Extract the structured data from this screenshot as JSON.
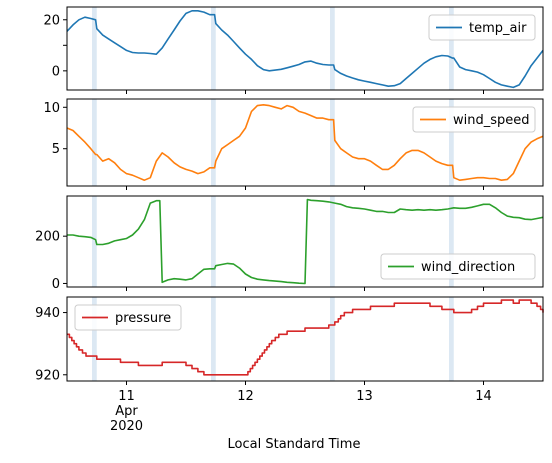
{
  "chart_data": {
    "type": "line",
    "xlabel": "Local Standard Time",
    "x_ticks": [
      {
        "x": 11,
        "label": "11",
        "sub1": "Apr",
        "sub2": "2020"
      },
      {
        "x": 12,
        "label": "12"
      },
      {
        "x": 13,
        "label": "13"
      },
      {
        "x": 14,
        "label": "14"
      }
    ],
    "xlim": [
      10.5,
      14.5
    ],
    "shaded_periods": [
      [
        10.71,
        10.75
      ],
      [
        11.71,
        11.75
      ],
      [
        12.71,
        12.75
      ],
      [
        13.71,
        13.75
      ]
    ],
    "shade_color": "#dce8f3",
    "panels": [
      {
        "name": "temp_air",
        "color": "#1f77b4",
        "ylim": [
          -7.5,
          25
        ],
        "yticks": [
          0,
          10,
          20
        ],
        "ytick_labels": [
          "0",
          "",
          "20"
        ],
        "legend": "top-right",
        "x": [
          10.5,
          10.55,
          10.6,
          10.65,
          10.7,
          10.74,
          10.75,
          10.8,
          10.85,
          10.9,
          10.95,
          11.0,
          11.05,
          11.1,
          11.15,
          11.2,
          11.25,
          11.3,
          11.35,
          11.4,
          11.45,
          11.5,
          11.55,
          11.6,
          11.65,
          11.7,
          11.74,
          11.75,
          11.8,
          11.85,
          11.9,
          11.95,
          12.0,
          12.05,
          12.1,
          12.15,
          12.2,
          12.25,
          12.3,
          12.35,
          12.4,
          12.45,
          12.5,
          12.55,
          12.6,
          12.65,
          12.7,
          12.74,
          12.75,
          12.8,
          12.85,
          12.9,
          12.95,
          13.0,
          13.05,
          13.1,
          13.15,
          13.2,
          13.25,
          13.3,
          13.35,
          13.4,
          13.45,
          13.5,
          13.55,
          13.6,
          13.65,
          13.7,
          13.74,
          13.75,
          13.8,
          13.85,
          13.9,
          13.95,
          14.0,
          14.05,
          14.1,
          14.15,
          14.2,
          14.25,
          14.3,
          14.35,
          14.4,
          14.45,
          14.5
        ],
        "values": [
          15.5,
          18.0,
          20.0,
          21.0,
          20.5,
          20.0,
          16.5,
          14.0,
          12.5,
          11.0,
          9.5,
          8.0,
          7.2,
          7.0,
          7.0,
          6.8,
          6.5,
          9.0,
          12.5,
          16.0,
          19.5,
          22.5,
          23.5,
          23.5,
          23.0,
          22.0,
          22.0,
          18.5,
          16.0,
          14.0,
          11.5,
          9.0,
          6.5,
          4.5,
          2.0,
          0.5,
          0.0,
          0.3,
          0.6,
          1.2,
          1.8,
          2.5,
          3.5,
          3.8,
          3.0,
          2.5,
          2.3,
          2.3,
          0.5,
          -1.0,
          -2.0,
          -2.8,
          -3.5,
          -4.0,
          -4.5,
          -5.0,
          -5.5,
          -6.0,
          -5.8,
          -5.0,
          -3.0,
          -1.0,
          1.0,
          3.0,
          4.5,
          5.5,
          6.0,
          5.8,
          5.0,
          5.0,
          1.5,
          0.5,
          0.0,
          -0.5,
          -1.5,
          -3.0,
          -4.5,
          -5.5,
          -6.0,
          -6.5,
          -5.5,
          -2.0,
          2.0,
          5.0,
          8.0
        ]
      },
      {
        "name": "wind_speed",
        "color": "#ff7f0e",
        "ylim": [
          0.5,
          11
        ],
        "yticks": [
          5,
          10
        ],
        "ytick_labels": [
          "5",
          "10"
        ],
        "legend": "top-right",
        "x": [
          10.5,
          10.55,
          10.6,
          10.65,
          10.7,
          10.74,
          10.75,
          10.8,
          10.85,
          10.9,
          10.95,
          11.0,
          11.05,
          11.1,
          11.15,
          11.2,
          11.25,
          11.3,
          11.35,
          11.4,
          11.45,
          11.5,
          11.55,
          11.6,
          11.65,
          11.7,
          11.74,
          11.75,
          11.8,
          11.85,
          11.9,
          11.95,
          12.0,
          12.05,
          12.1,
          12.15,
          12.2,
          12.25,
          12.3,
          12.35,
          12.4,
          12.45,
          12.5,
          12.55,
          12.6,
          12.65,
          12.7,
          12.74,
          12.75,
          12.8,
          12.85,
          12.9,
          12.95,
          13.0,
          13.05,
          13.1,
          13.15,
          13.2,
          13.25,
          13.3,
          13.35,
          13.4,
          13.45,
          13.5,
          13.55,
          13.6,
          13.65,
          13.7,
          13.74,
          13.75,
          13.8,
          13.85,
          13.9,
          13.95,
          14.0,
          14.05,
          14.1,
          14.15,
          14.2,
          14.25,
          14.3,
          14.35,
          14.4,
          14.45,
          14.5
        ],
        "values": [
          7.5,
          7.2,
          6.5,
          5.8,
          5.0,
          4.3,
          4.3,
          3.5,
          3.8,
          3.3,
          2.5,
          2.0,
          1.8,
          1.5,
          1.2,
          1.5,
          3.5,
          4.5,
          4.0,
          3.3,
          2.8,
          2.5,
          2.3,
          2.0,
          2.2,
          2.7,
          2.7,
          3.5,
          5.0,
          5.5,
          6.0,
          6.5,
          7.5,
          9.5,
          10.2,
          10.3,
          10.2,
          10.0,
          9.8,
          10.2,
          10.0,
          9.5,
          9.3,
          9.0,
          8.7,
          8.7,
          8.5,
          8.5,
          6.0,
          5.0,
          4.5,
          4.0,
          3.8,
          3.8,
          3.5,
          3.0,
          2.5,
          2.5,
          3.0,
          3.8,
          4.5,
          4.8,
          4.8,
          4.5,
          4.0,
          3.5,
          3.2,
          3.0,
          3.0,
          1.5,
          1.2,
          1.3,
          1.4,
          1.5,
          1.5,
          1.4,
          1.4,
          1.2,
          1.3,
          2.0,
          3.5,
          5.0,
          5.8,
          6.2,
          6.5
        ]
      },
      {
        "name": "wind_direction",
        "color": "#2ca02c",
        "ylim": [
          -15,
          370
        ],
        "yticks": [
          0,
          200
        ],
        "ytick_labels": [
          "0",
          "200"
        ],
        "legend": "bottom-right",
        "x": [
          10.5,
          10.55,
          10.6,
          10.65,
          10.7,
          10.74,
          10.75,
          10.8,
          10.85,
          10.9,
          10.95,
          11.0,
          11.05,
          11.1,
          11.15,
          11.2,
          11.25,
          11.28,
          11.3,
          11.35,
          11.4,
          11.45,
          11.5,
          11.55,
          11.6,
          11.65,
          11.7,
          11.74,
          11.75,
          11.8,
          11.85,
          11.9,
          11.95,
          12.0,
          12.05,
          12.1,
          12.15,
          12.2,
          12.25,
          12.3,
          12.35,
          12.4,
          12.45,
          12.5,
          12.52,
          12.55,
          12.6,
          12.65,
          12.7,
          12.75,
          12.8,
          12.85,
          12.9,
          12.95,
          13.0,
          13.05,
          13.1,
          13.15,
          13.2,
          13.25,
          13.3,
          13.35,
          13.4,
          13.45,
          13.5,
          13.55,
          13.6,
          13.65,
          13.7,
          13.75,
          13.8,
          13.85,
          13.9,
          13.95,
          14.0,
          14.05,
          14.1,
          14.15,
          14.2,
          14.25,
          14.3,
          14.35,
          14.4,
          14.45,
          14.5
        ],
        "values": [
          205,
          205,
          200,
          198,
          195,
          185,
          165,
          165,
          170,
          180,
          185,
          190,
          205,
          230,
          270,
          340,
          350,
          350,
          5,
          15,
          20,
          18,
          15,
          20,
          40,
          60,
          62,
          62,
          75,
          80,
          85,
          82,
          65,
          40,
          25,
          18,
          15,
          12,
          10,
          8,
          5,
          3,
          1,
          0,
          355,
          352,
          350,
          348,
          345,
          340,
          335,
          325,
          320,
          318,
          315,
          310,
          305,
          305,
          300,
          300,
          315,
          312,
          310,
          312,
          310,
          312,
          310,
          312,
          315,
          320,
          318,
          318,
          322,
          328,
          335,
          335,
          320,
          300,
          285,
          280,
          278,
          272,
          270,
          275,
          280
        ]
      },
      {
        "name": "pressure",
        "color": "#d62728",
        "ylim": [
          918,
          945
        ],
        "yticks": [
          920,
          940
        ],
        "ytick_labels": [
          "920",
          "940"
        ],
        "legend": "top-left",
        "step": true,
        "x": [
          10.5,
          10.52,
          10.54,
          10.56,
          10.58,
          10.6,
          10.63,
          10.66,
          10.7,
          10.75,
          10.8,
          10.9,
          10.95,
          11.0,
          11.1,
          11.2,
          11.25,
          11.3,
          11.4,
          11.45,
          11.5,
          11.55,
          11.6,
          11.65,
          11.7,
          11.8,
          11.9,
          11.95,
          12.0,
          12.02,
          12.04,
          12.06,
          12.08,
          12.1,
          12.12,
          12.14,
          12.16,
          12.18,
          12.2,
          12.22,
          12.25,
          12.28,
          12.3,
          12.35,
          12.4,
          12.45,
          12.5,
          12.55,
          12.6,
          12.65,
          12.7,
          12.72,
          12.75,
          12.78,
          12.8,
          12.83,
          12.86,
          12.9,
          12.95,
          13.05,
          13.15,
          13.25,
          13.35,
          13.5,
          13.55,
          13.6,
          13.65,
          13.7,
          13.75,
          13.8,
          13.85,
          13.9,
          13.95,
          14.0,
          14.15,
          14.2,
          14.25,
          14.3,
          14.35,
          14.4,
          14.45,
          14.48,
          14.5
        ],
        "values": [
          933,
          932,
          931,
          930,
          929,
          928,
          927,
          926,
          926,
          925,
          925,
          925,
          924,
          924,
          923,
          923,
          923,
          924,
          924,
          924,
          923,
          922,
          921,
          920,
          920,
          920,
          920,
          920,
          920,
          921,
          922,
          923,
          924,
          925,
          926,
          927,
          928,
          929,
          930,
          931,
          932,
          933,
          933,
          934,
          934,
          934,
          935,
          935,
          935,
          935,
          936,
          936,
          937,
          938,
          939,
          940,
          940,
          941,
          941,
          942,
          942,
          943,
          943,
          943,
          942,
          942,
          941,
          941,
          940,
          940,
          940,
          941,
          942,
          943,
          944,
          944,
          943,
          944,
          944,
          943,
          942,
          941,
          940
        ]
      }
    ]
  }
}
